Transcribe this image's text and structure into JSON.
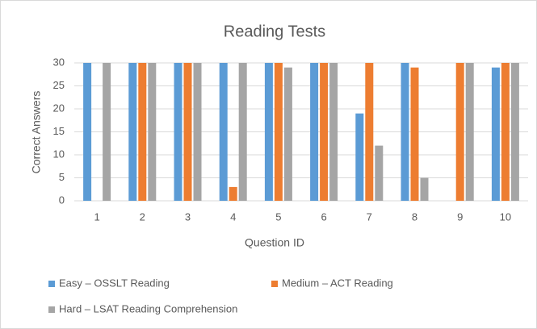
{
  "chart_data": {
    "type": "bar",
    "title": "Reading Tests",
    "x_label": "Question ID",
    "y_label": "Correct Answers",
    "categories": [
      "1",
      "2",
      "3",
      "4",
      "5",
      "6",
      "7",
      "8",
      "9",
      "10"
    ],
    "series": [
      {
        "name": "Easy – OSSLT Reading",
        "color": "#5b9bd5",
        "values": [
          30,
          30,
          30,
          30,
          30,
          30,
          19,
          30,
          0,
          29
        ]
      },
      {
        "name": "Medium – ACT Reading",
        "color": "#ed7d31",
        "values": [
          0,
          30,
          30,
          3,
          30,
          30,
          30,
          29,
          30,
          30
        ]
      },
      {
        "name": "Hard – LSAT Reading Comprehension",
        "color": "#a5a5a5",
        "values": [
          30,
          30,
          30,
          30,
          29,
          30,
          12,
          5,
          30,
          30
        ]
      }
    ],
    "ylim": [
      0,
      30
    ],
    "yticks": [
      0,
      5,
      10,
      15,
      20,
      25,
      30
    ],
    "grid": true,
    "legend": "bottom"
  }
}
